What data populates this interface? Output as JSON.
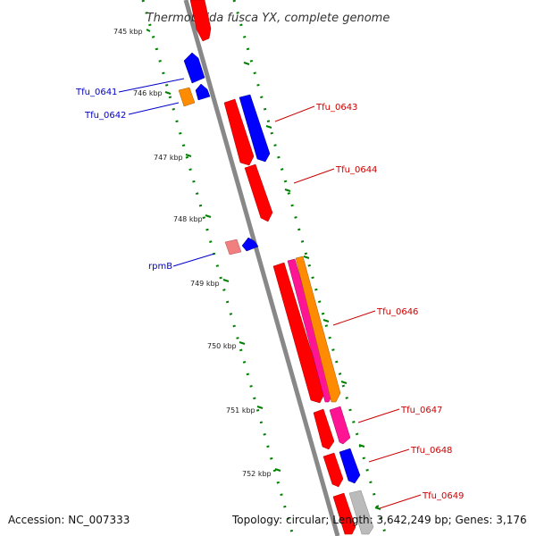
{
  "title": "Thermobifida fusca YX, complete genome",
  "footer": {
    "accession": "Accession: NC_007333",
    "summary": "Topology: circular; Length: 3,642,249 bp; Genes: 3,176"
  },
  "ticks": [
    "745 kbp",
    "746 kbp",
    "747 kbp",
    "748 kbp",
    "749 kbp",
    "750 kbp",
    "751 kbp",
    "752 kbp"
  ],
  "genes": [
    {
      "label": "Tfu_0641",
      "color": "#0000ff"
    },
    {
      "label": "Tfu_0642",
      "color": "#0000ff"
    },
    {
      "label": "Tfu_0643",
      "color": "#ff0000"
    },
    {
      "label": "Tfu_0644",
      "color": "#ff0000"
    },
    {
      "label": "rpmB",
      "color": "#0000ff"
    },
    {
      "label": "Tfu_0646",
      "color": "#ff0000"
    },
    {
      "label": "Tfu_0647",
      "color": "#ff0000"
    },
    {
      "label": "Tfu_0648",
      "color": "#ff0000"
    },
    {
      "label": "Tfu_0649",
      "color": "#ff0000"
    }
  ],
  "colors": {
    "backbone": "#888888",
    "dotted_ring": "#008000",
    "cds_red": "#ff0000",
    "cds_blue": "#0000ff",
    "cds_orange": "#ff8c00",
    "cds_magenta": "#ff1493",
    "cds_pink": "#f08080",
    "cds_gray": "#bbbbbb"
  }
}
